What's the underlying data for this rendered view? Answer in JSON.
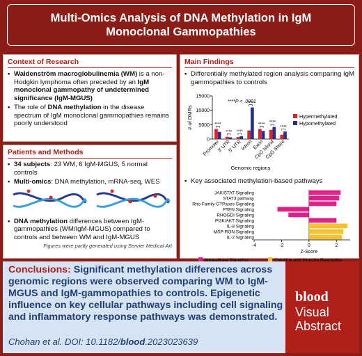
{
  "title": "Multi-Omics Analysis of DNA Methylation in IgM Monoclonal Gammopathies",
  "context": {
    "heading": "Context of Research",
    "bullets": [
      [
        {
          "text": "Waldenström macroglobulinemia (WM)",
          "bold": true
        },
        {
          "text": " is a non-Hodgkin lymphoma often preceded by an ",
          "bold": false
        },
        {
          "text": "IgM monoclonal gammopathy of undetermined significance (IgM-MGUS)",
          "bold": true
        }
      ],
      [
        {
          "text": "The role of ",
          "bold": false
        },
        {
          "text": "DNA methylation",
          "bold": true
        },
        {
          "text": " in the disease spectrum of IgM monoclonal gammopathies remains poorly understood",
          "bold": false
        }
      ]
    ]
  },
  "patients": {
    "heading": "Patients and Methods",
    "bullets": [
      [
        {
          "text": "34 subjects",
          "bold": true
        },
        {
          "text": ": 23 WM, 6 IgM-MGUS, 5 normal controls",
          "bold": false
        }
      ],
      [
        {
          "text": "Multi-omics",
          "bold": true
        },
        {
          "text": ": DNA methylation, mRNA-seq, WES",
          "bold": false
        }
      ],
      [
        {
          "text": "DNA methylation",
          "bold": true
        },
        {
          "text": " differences between IgM-gammopathies (WM/IgM-MGUS) compared to controls and between WM and IgM-MGUS",
          "bold": false
        }
      ]
    ],
    "note": "Figures were partly generated using Servier Medical Art"
  },
  "findings": {
    "heading": "Main Findings",
    "bullets": [
      [
        {
          "text": "Differentially methylated region analysis comparing IgM gammopathies to controls",
          "bold": false
        }
      ],
      [
        {
          "text": "Key associated methylation-based pathways",
          "bold": false
        }
      ]
    ]
  },
  "chart_data": [
    {
      "type": "bar",
      "ylabel": "# of DMRs",
      "xlabel": "Genomic regions",
      "annotation": "****P < .0001",
      "categories": [
        "Promoter",
        "3' UTR",
        "5' UTR",
        "Intron",
        "Exon",
        "CpG Island",
        "CpG Shore"
      ],
      "stars": [
        "****",
        "****",
        "****",
        "****",
        "****",
        "****",
        "****"
      ],
      "series": [
        {
          "name": "Hypermethylated",
          "color": "#e0202a",
          "values": [
            3500,
            800,
            700,
            3000,
            3500,
            3200,
            1500
          ]
        },
        {
          "name": "Hypomethylated",
          "color": "#27318b",
          "values": [
            2500,
            600,
            1000,
            11000,
            2800,
            4200,
            2600
          ]
        }
      ],
      "ylim": [
        0,
        15000
      ],
      "yticks": [
        0,
        5000,
        10000,
        15000
      ]
    },
    {
      "type": "hbar",
      "xlabel": "Z-Score",
      "categories": [
        "JAK/STAT Signaling",
        "STAT3 pathway",
        "Rho Family GTPases Signaling",
        "PTEN Signaling",
        "RHOGDI Signaling",
        "PI3K/AKT Signaling",
        "IL-8 Signaling",
        "MSP-RON Signaling",
        "IL-2 Signaling"
      ],
      "values": [
        2.3,
        2.2,
        2.0,
        -2.3,
        -1.5,
        2.0,
        2.8,
        2.5,
        2.4
      ],
      "colors": [
        "#e0218a",
        "#e0218a",
        "#e0218a",
        "#e0218a",
        "#e0218a",
        "#e0218a",
        "#f4c12e",
        "#f4c12e",
        "#f4c12e"
      ],
      "legend": [
        {
          "name": "Intracellular Signaling",
          "color": "#e0218a"
        },
        {
          "name": "Cytokine and Immune Regulation",
          "color": "#f4c12e"
        }
      ],
      "xlim": [
        -4,
        3
      ],
      "xticks": [
        -4,
        -2,
        0,
        2
      ]
    }
  ],
  "conclusions": {
    "label": "Conclusions:",
    "text": " Significant methylation differences across genomic regions were observed comparing WM to IgM-MGUS and IgM-gammopathies to controls. Epigenetic influence on key cellular pathways including cell signaling and inflammatory response pathways was demonstrated.",
    "citation": [
      {
        "text": "Chohan et al. DOI: 10.1182/",
        "bold": false
      },
      {
        "text": "blood",
        "bold": true
      },
      {
        "text": ".2023023639",
        "bold": false
      }
    ]
  },
  "logo": {
    "brand": "blood",
    "line1": "Visual",
    "line2": "Abstract"
  }
}
